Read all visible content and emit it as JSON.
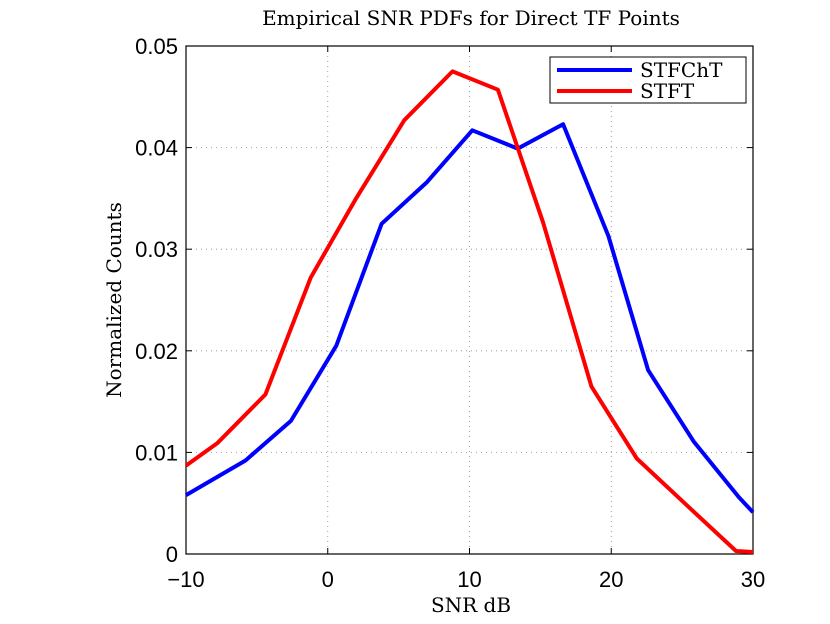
{
  "chart_data": {
    "type": "line",
    "title": "Empirical SNR PDFs for Direct TF Points",
    "xlabel": "SNR dB",
    "ylabel": "Normalized Counts",
    "xlim": [
      -10,
      30
    ],
    "ylim": [
      0,
      0.05
    ],
    "xticks": [
      -10,
      0,
      10,
      20,
      30
    ],
    "xtick_labels": [
      "−10",
      "0",
      "10",
      "20",
      "30"
    ],
    "yticks": [
      0,
      0.01,
      0.02,
      0.03,
      0.04,
      0.05
    ],
    "ytick_labels": [
      "0",
      "0.01",
      "0.02",
      "0.03",
      "0.04",
      "0.05"
    ],
    "grid": true,
    "legend_position": "top-right",
    "series": [
      {
        "name": "STFChT",
        "color": "#0000ff",
        "points": [
          [
            -10,
            0.0058
          ],
          [
            -5.8,
            0.0092
          ],
          [
            -2.6,
            0.0131
          ],
          [
            0.6,
            0.0205
          ],
          [
            3.8,
            0.0325
          ],
          [
            7.0,
            0.0366
          ],
          [
            10.2,
            0.0417
          ],
          [
            13.4,
            0.0399
          ],
          [
            16.6,
            0.0423
          ],
          [
            19.8,
            0.0313
          ],
          [
            22.6,
            0.0181
          ],
          [
            25.8,
            0.0111
          ],
          [
            29.0,
            0.0056
          ],
          [
            30,
            0.0041
          ]
        ]
      },
      {
        "name": "STFT",
        "color": "#ff0000",
        "points": [
          [
            -10,
            0.0087
          ],
          [
            -7.8,
            0.0109
          ],
          [
            -4.4,
            0.0157
          ],
          [
            -1.2,
            0.0272
          ],
          [
            2.0,
            0.035
          ],
          [
            5.4,
            0.0427
          ],
          [
            8.8,
            0.0475
          ],
          [
            12.0,
            0.0457
          ],
          [
            15.2,
            0.0326
          ],
          [
            18.6,
            0.0165
          ],
          [
            21.8,
            0.0094
          ],
          [
            25.4,
            0.0047
          ],
          [
            28.8,
            0.0003
          ],
          [
            30,
            0.0002
          ]
        ]
      }
    ]
  }
}
